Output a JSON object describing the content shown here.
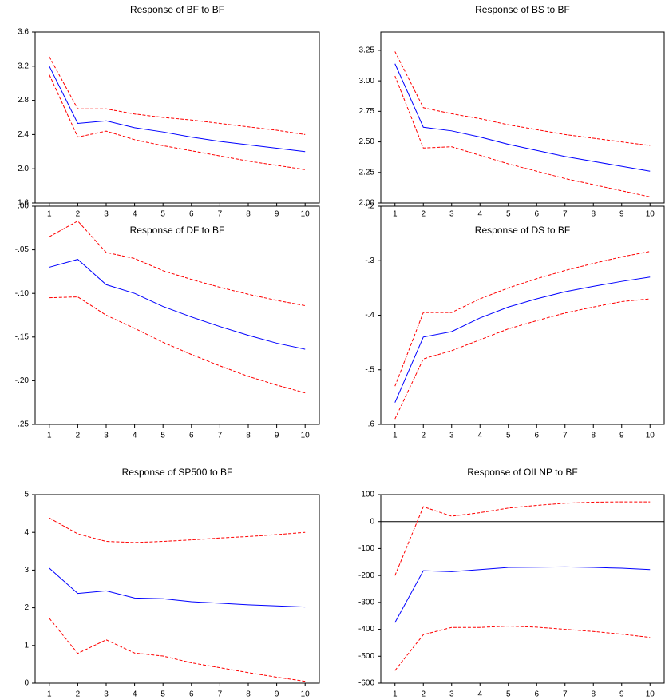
{
  "chart_data": [
    {
      "type": "line",
      "title": "Response of BF to BF",
      "x": [
        1,
        2,
        3,
        4,
        5,
        6,
        7,
        8,
        9,
        10
      ],
      "xlim": [
        0.5,
        10.5
      ],
      "xticks": [
        1,
        2,
        3,
        4,
        5,
        6,
        7,
        8,
        9,
        10
      ],
      "ylim": [
        1.6,
        3.6
      ],
      "yticks": [
        1.6,
        {
          "value": 2.0,
          "label": "2.0"
        },
        2.4,
        2.8,
        3.2,
        3.6
      ],
      "series": [
        {
          "color": "#0000ff",
          "style": "solid",
          "values": [
            3.2,
            2.53,
            2.56,
            2.48,
            2.43,
            2.37,
            2.32,
            2.28,
            2.24,
            2.2
          ]
        },
        {
          "color": "#ff0000",
          "style": "dashed",
          "values": [
            3.31,
            2.7,
            2.7,
            2.64,
            2.6,
            2.57,
            2.53,
            2.49,
            2.45,
            2.4
          ]
        },
        {
          "color": "#ff0000",
          "style": "dashed",
          "values": [
            3.1,
            2.37,
            2.44,
            2.34,
            2.27,
            2.21,
            2.15,
            2.09,
            2.04,
            1.99
          ]
        }
      ]
    },
    {
      "type": "line",
      "title": "Response of BS to BF",
      "x": [
        1,
        2,
        3,
        4,
        5,
        6,
        7,
        8,
        9,
        10
      ],
      "xlim": [
        0.5,
        10.5
      ],
      "xticks": [
        1,
        2,
        3,
        4,
        5,
        6,
        7,
        8,
        9,
        10
      ],
      "ylim": [
        2.0,
        3.4
      ],
      "yticks": [
        {
          "value": 2.0,
          "label": "2.00"
        },
        2.25,
        {
          "value": 2.5,
          "label": "2.50"
        },
        2.75,
        {
          "value": 3.0,
          "label": "3.00"
        },
        3.25
      ],
      "series": [
        {
          "color": "#0000ff",
          "style": "solid",
          "values": [
            3.14,
            2.62,
            2.59,
            2.54,
            2.48,
            2.43,
            2.38,
            2.34,
            2.3,
            2.26
          ]
        },
        {
          "color": "#ff0000",
          "style": "dashed",
          "values": [
            3.24,
            2.78,
            2.73,
            2.69,
            2.64,
            2.6,
            2.56,
            2.53,
            2.5,
            2.47
          ]
        },
        {
          "color": "#ff0000",
          "style": "dashed",
          "values": [
            3.04,
            2.45,
            2.46,
            2.39,
            2.32,
            2.26,
            2.2,
            2.15,
            2.1,
            2.05
          ]
        }
      ]
    },
    {
      "type": "line",
      "title": "Response of DF to BF",
      "x": [
        1,
        2,
        3,
        4,
        5,
        6,
        7,
        8,
        9,
        10
      ],
      "xlim": [
        0.5,
        10.5
      ],
      "xticks": [
        1,
        2,
        3,
        4,
        5,
        6,
        7,
        8,
        9,
        10
      ],
      "ylim": [
        -0.25,
        0
      ],
      "yticks": [
        {
          "value": -0.25,
          "label": "-.25"
        },
        {
          "value": -0.2,
          "label": "-.20"
        },
        {
          "value": -0.15,
          "label": "-.15"
        },
        {
          "value": -0.1,
          "label": "-.10"
        },
        {
          "value": -0.05,
          "label": "-.05"
        },
        {
          "value": 0,
          "label": ".00"
        }
      ],
      "series": [
        {
          "color": "#0000ff",
          "style": "solid",
          "values": [
            -0.07,
            -0.061,
            -0.09,
            -0.1,
            -0.115,
            -0.127,
            -0.138,
            -0.148,
            -0.157,
            -0.164
          ]
        },
        {
          "color": "#ff0000",
          "style": "dashed",
          "values": [
            -0.035,
            -0.017,
            -0.053,
            -0.06,
            -0.074,
            -0.084,
            -0.093,
            -0.101,
            -0.108,
            -0.114
          ]
        },
        {
          "color": "#ff0000",
          "style": "dashed",
          "values": [
            -0.105,
            -0.104,
            -0.125,
            -0.14,
            -0.156,
            -0.17,
            -0.183,
            -0.195,
            -0.205,
            -0.214
          ]
        }
      ]
    },
    {
      "type": "line",
      "title": "Response of DS to BF",
      "x": [
        1,
        2,
        3,
        4,
        5,
        6,
        7,
        8,
        9,
        10
      ],
      "xlim": [
        0.5,
        10.5
      ],
      "xticks": [
        1,
        2,
        3,
        4,
        5,
        6,
        7,
        8,
        9,
        10
      ],
      "ylim": [
        -0.6,
        -0.2
      ],
      "yticks": [
        {
          "value": -0.6,
          "label": "-.6"
        },
        {
          "value": -0.5,
          "label": "-.5"
        },
        {
          "value": -0.4,
          "label": "-.4"
        },
        {
          "value": -0.3,
          "label": "-.3"
        },
        {
          "value": -0.2,
          "label": "-.2"
        }
      ],
      "series": [
        {
          "color": "#0000ff",
          "style": "solid",
          "values": [
            -0.56,
            -0.44,
            -0.43,
            -0.405,
            -0.385,
            -0.37,
            -0.357,
            -0.347,
            -0.338,
            -0.33
          ]
        },
        {
          "color": "#ff0000",
          "style": "dashed",
          "values": [
            -0.53,
            -0.395,
            -0.395,
            -0.37,
            -0.35,
            -0.333,
            -0.318,
            -0.305,
            -0.293,
            -0.283
          ]
        },
        {
          "color": "#ff0000",
          "style": "dashed",
          "values": [
            -0.59,
            -0.48,
            -0.465,
            -0.445,
            -0.425,
            -0.41,
            -0.396,
            -0.385,
            -0.375,
            -0.37
          ]
        }
      ]
    },
    {
      "type": "line",
      "title": "Response of SP500 to BF",
      "x": [
        1,
        2,
        3,
        4,
        5,
        6,
        7,
        8,
        9,
        10
      ],
      "xlim": [
        0.5,
        10.5
      ],
      "xticks": [
        1,
        2,
        3,
        4,
        5,
        6,
        7,
        8,
        9,
        10
      ],
      "ylim": [
        0,
        5
      ],
      "yticks": [
        0,
        1,
        2,
        3,
        4,
        5
      ],
      "series": [
        {
          "color": "#0000ff",
          "style": "solid",
          "values": [
            3.05,
            2.38,
            2.45,
            2.26,
            2.24,
            2.16,
            2.12,
            2.08,
            2.05,
            2.02
          ]
        },
        {
          "color": "#ff0000",
          "style": "dashed",
          "values": [
            4.38,
            3.96,
            3.76,
            3.73,
            3.76,
            3.8,
            3.85,
            3.89,
            3.94,
            4.0
          ]
        },
        {
          "color": "#ff0000",
          "style": "dashed",
          "values": [
            1.72,
            0.79,
            1.15,
            0.8,
            0.72,
            0.54,
            0.41,
            0.28,
            0.16,
            0.05
          ]
        }
      ]
    },
    {
      "type": "line",
      "title": "Response of OILNP to BF",
      "x": [
        1,
        2,
        3,
        4,
        5,
        6,
        7,
        8,
        9,
        10
      ],
      "xlim": [
        0.5,
        10.5
      ],
      "xticks": [
        1,
        2,
        3,
        4,
        5,
        6,
        7,
        8,
        9,
        10
      ],
      "ylim": [
        -600,
        100
      ],
      "yticks": [
        -600,
        -500,
        -400,
        -300,
        -200,
        -100,
        0,
        100
      ],
      "zero_line": true,
      "series": [
        {
          "color": "#0000ff",
          "style": "solid",
          "values": [
            -375,
            -182,
            -186,
            -178,
            -170,
            -169,
            -168,
            -170,
            -173,
            -178
          ]
        },
        {
          "color": "#ff0000",
          "style": "dashed",
          "values": [
            -200,
            55,
            20,
            33,
            50,
            60,
            68,
            72,
            73,
            73
          ]
        },
        {
          "color": "#ff0000",
          "style": "dashed",
          "values": [
            -553,
            -420,
            -393,
            -393,
            -388,
            -392,
            -400,
            -408,
            -418,
            -430
          ]
        }
      ]
    }
  ]
}
